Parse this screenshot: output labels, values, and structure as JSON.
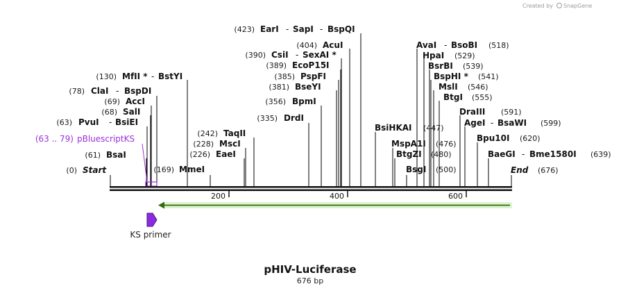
{
  "credit": {
    "text": "Created by",
    "brand": "SnapGene"
  },
  "title": "pHIV-Luciferase",
  "subtitle": "676 bp",
  "total_bp": 676,
  "ruler": {
    "ticks": [
      "200",
      "400",
      "600"
    ]
  },
  "ends": {
    "start": {
      "pos": "(0)",
      "label": "Start"
    },
    "end": {
      "label": "End",
      "pos": "(676)"
    }
  },
  "feature": {
    "label": "pBluescriptKS",
    "range": "(63 .. 79)",
    "color": "#9b30d9"
  },
  "primer": {
    "label": "KS primer",
    "color": "#8a2be2"
  },
  "orf": {
    "color": "#7ac943"
  },
  "sites": [
    {
      "pos": "(61)",
      "names": [
        "BsaI"
      ]
    },
    {
      "pos": "(63)",
      "names": [
        "PvuI",
        "BsiEI"
      ]
    },
    {
      "pos": "(68)",
      "names": [
        "SalI"
      ]
    },
    {
      "pos": "(69)",
      "names": [
        "AccI"
      ]
    },
    {
      "pos": "(78)",
      "names": [
        "ClaI",
        "BspDI"
      ]
    },
    {
      "pos": "(130)",
      "names": [
        "MfII *",
        "BstYI"
      ]
    },
    {
      "pos": "(169)",
      "names": [
        "MmeI"
      ]
    },
    {
      "pos": "(226)",
      "names": [
        "EaeI"
      ]
    },
    {
      "pos": "(228)",
      "names": [
        "MscI"
      ]
    },
    {
      "pos": "(242)",
      "names": [
        "TaqII"
      ]
    },
    {
      "pos": "(335)",
      "names": [
        "DrdI"
      ]
    },
    {
      "pos": "(356)",
      "names": [
        "BpmI"
      ]
    },
    {
      "pos": "(381)",
      "names": [
        "BseYI"
      ]
    },
    {
      "pos": "(385)",
      "names": [
        "PspFI"
      ]
    },
    {
      "pos": "(389)",
      "names": [
        "EcoP15I"
      ]
    },
    {
      "pos": "(390)",
      "names": [
        "CsiI",
        "SexAI *"
      ]
    },
    {
      "pos": "(404)",
      "names": [
        "AcuI"
      ]
    },
    {
      "pos": "(423)",
      "names": [
        "EarI",
        "SapI",
        "BspQI"
      ]
    },
    {
      "pos": "(447)",
      "names": [
        "BsiHKAI"
      ]
    },
    {
      "pos": "(476)",
      "names": [
        "MspA1I"
      ]
    },
    {
      "pos": "(480)",
      "names": [
        "BtgZI"
      ]
    },
    {
      "pos": "(500)",
      "names": [
        "BsgI"
      ]
    },
    {
      "pos": "(518)",
      "names": [
        "AvaI",
        "BsoBI"
      ]
    },
    {
      "pos": "(529)",
      "names": [
        "HpaI"
      ]
    },
    {
      "pos": "(539)",
      "names": [
        "BsrBI"
      ]
    },
    {
      "pos": "(541)",
      "names": [
        "BspHI *"
      ]
    },
    {
      "pos": "(546)",
      "names": [
        "MslI"
      ]
    },
    {
      "pos": "(555)",
      "names": [
        "BtgI"
      ]
    },
    {
      "pos": "(591)",
      "names": [
        "DraIII"
      ]
    },
    {
      "pos": "(599)",
      "names": [
        "AgeI",
        "BsaWI"
      ]
    },
    {
      "pos": "(620)",
      "names": [
        "Bpu10I"
      ]
    },
    {
      "pos": "(639)",
      "names": [
        "BaeGI",
        "Bme1580I"
      ]
    }
  ]
}
